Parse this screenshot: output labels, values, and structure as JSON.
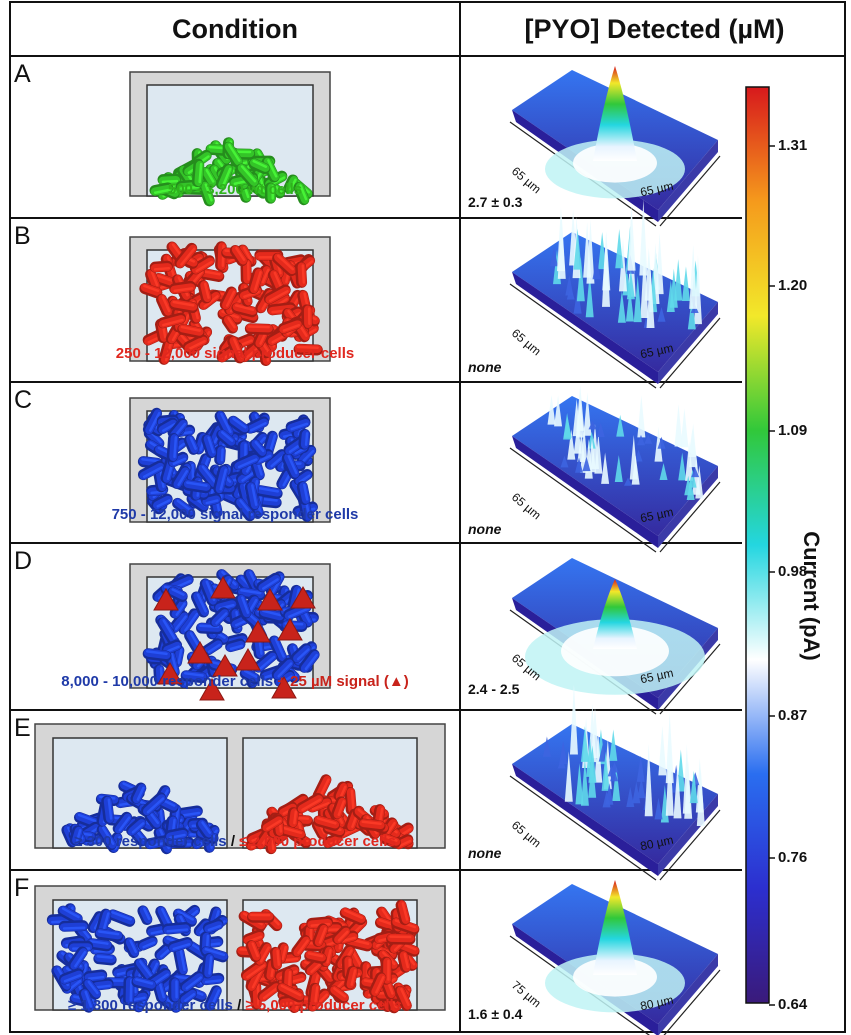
{
  "headers": {
    "condition": "Condition",
    "pyo": "[PYO] Detected (µM)"
  },
  "panels": [
    {
      "letter": "A",
      "pyo": "2.7 ± 0.3",
      "italic": false,
      "ax1": "65 µm",
      "ax2": "65 µm",
      "caption": [
        {
          "t": "500 - 3,200 wt cells",
          "c": "#2fb31c"
        }
      ]
    },
    {
      "letter": "B",
      "pyo": "none",
      "italic": true,
      "ax1": "65 µm",
      "ax2": "65 µm",
      "caption": [
        {
          "t": "250 - 12,000 signal producer cells",
          "c": "#e0271e"
        }
      ]
    },
    {
      "letter": "C",
      "pyo": "none",
      "italic": true,
      "ax1": "65 µm",
      "ax2": "65 µm",
      "caption": [
        {
          "t": "750 - 12,000 signal responder cells",
          "c": "#1f3aa8"
        }
      ]
    },
    {
      "letter": "D",
      "pyo": "2.4 - 2.5",
      "italic": false,
      "ax1": "65 µm",
      "ax2": "65 µm",
      "caption": [
        {
          "t": "8,000 - 10,000 responder cells",
          "c": "#1f3aa8"
        },
        {
          "t": " + 25 µM signal (",
          "c": "#c8231b"
        },
        {
          "t": "▲",
          "c": "#c8231b"
        },
        {
          "t": ")",
          "c": "#c8231b"
        }
      ]
    },
    {
      "letter": "E",
      "pyo": "none",
      "italic": true,
      "ax1": "65 µm",
      "ax2": "80 µm",
      "caption": [
        {
          "t": "≥ 300 responder cells",
          "c": "#1f3aa8"
        },
        {
          "t": " / ",
          "c": "#111111"
        },
        {
          "t": "≤ 2,000 producer cells",
          "c": "#e0271e"
        }
      ]
    },
    {
      "letter": "F",
      "pyo": "1.6 ± 0.4",
      "italic": false,
      "ax1": "75 µm",
      "ax2": "80 µm",
      "caption": [
        {
          "t": "≥ 1,300 responder cells",
          "c": "#1f3aa8"
        },
        {
          "t": " / ",
          "c": "#111111"
        },
        {
          "t": "≥ 5,000 producer cells",
          "c": "#e0271e"
        }
      ]
    }
  ],
  "colorbar": {
    "label": "Current (pA)",
    "ticks": [
      "1.31",
      "1.20",
      "1.09",
      "0.98",
      "0.87",
      "0.76",
      "0.64"
    ],
    "colors": [
      "#d7191c",
      "#f59a1c",
      "#f2e82a",
      "#31c83a",
      "#24d6e0",
      "#ffffff",
      "#2a6ef0",
      "#2c2fcf",
      "#3a1a7a"
    ]
  },
  "colors": {
    "wt": "#34c428",
    "producer": "#e42a1c",
    "responder": "#1e3fd6",
    "signal": "#c8231b",
    "chamber_wall": "#d6d6d6",
    "chamber_fill": "#dde8f1"
  }
}
